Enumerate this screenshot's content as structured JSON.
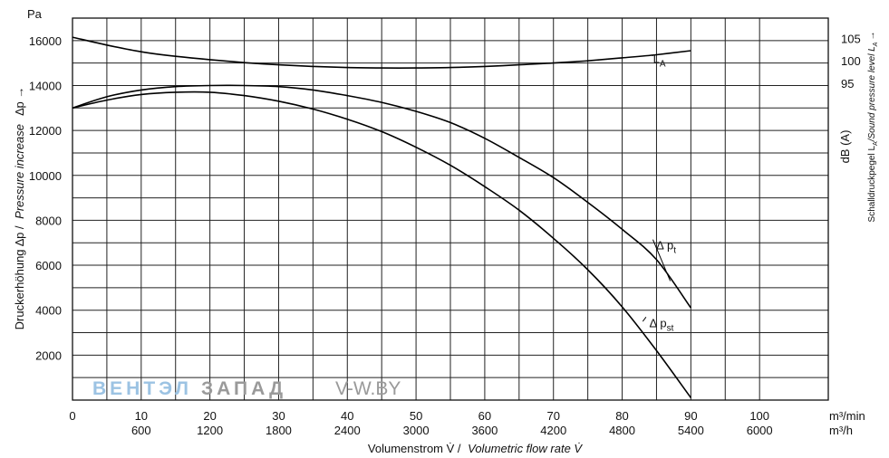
{
  "chart_data": {
    "type": "line",
    "y_unit": "Pa",
    "ylabel": {
      "de": "Druckerhöhung ∆p /",
      "en": "Pressure increase",
      "sym": "∆p →"
    },
    "xlabel": {
      "de": "Volumenstrom V̇ /",
      "en": "Volumetric flow rate V̇"
    },
    "y2label": {
      "de": "Schalldruckpegel L",
      "de_sub": "A",
      "en": "/Sound pressure level L",
      "en_sub": "A",
      "arrow": "→"
    },
    "y2_unit": "dB (A)",
    "x_unit_min": "m³/min",
    "x_unit_h": "m³/h",
    "xlim_min": [
      0,
      110
    ],
    "ylim": [
      0,
      17000
    ],
    "y_ticks": [
      2000,
      4000,
      6000,
      8000,
      10000,
      12000,
      14000,
      16000
    ],
    "x_ticks_min": [
      0,
      10,
      20,
      30,
      40,
      50,
      60,
      70,
      80,
      90,
      100
    ],
    "x_ticks_h": [
      600,
      1200,
      1800,
      2400,
      3000,
      3600,
      4200,
      4800,
      5400,
      6000
    ],
    "y2_ticks": [
      95,
      100,
      105
    ],
    "grid": true,
    "series": [
      {
        "name": "∆ p",
        "sub": "t",
        "label_x": 85,
        "label_y": 6700,
        "x": [
          0,
          5,
          10,
          15,
          20,
          25,
          30,
          35,
          40,
          45,
          50,
          55,
          60,
          65,
          70,
          75,
          80,
          85,
          90
        ],
        "y": [
          13000,
          13500,
          13800,
          13950,
          14000,
          14000,
          13950,
          13800,
          13550,
          13250,
          12850,
          12350,
          11650,
          10800,
          9900,
          8800,
          7600,
          6250,
          4100
        ]
      },
      {
        "name": "∆ p",
        "sub": "st",
        "label_x": 84,
        "label_y": 3250,
        "x": [
          0,
          5,
          10,
          15,
          20,
          25,
          30,
          35,
          40,
          45,
          50,
          55,
          60,
          65,
          70,
          75,
          80,
          85,
          90
        ],
        "y": [
          13000,
          13350,
          13600,
          13700,
          13700,
          13550,
          13300,
          12950,
          12500,
          11950,
          11250,
          10450,
          9500,
          8450,
          7200,
          5800,
          4150,
          2200,
          100
        ]
      },
      {
        "name": "L",
        "sub": "A",
        "axis": "y2",
        "label_x": 84.5,
        "label_y": 15000,
        "x": [
          0,
          5,
          10,
          15,
          20,
          25,
          30,
          35,
          40,
          45,
          50,
          55,
          60,
          65,
          70,
          75,
          80,
          85,
          90
        ],
        "y": [
          16150,
          15800,
          15500,
          15300,
          15150,
          15020,
          14920,
          14850,
          14800,
          14780,
          14780,
          14800,
          14850,
          14920,
          15000,
          15100,
          15230,
          15370,
          15550
        ]
      }
    ],
    "watermark": {
      "part1": "ВЕНТЭЛ",
      "part2": "ЗАПАД",
      "part3": "V-W.BY"
    }
  }
}
